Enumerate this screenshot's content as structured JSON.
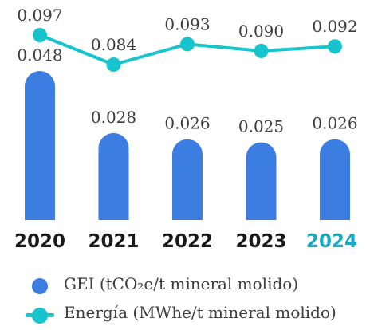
{
  "chart_data": {
    "type": "bar+line",
    "categories": [
      "2020",
      "2021",
      "2022",
      "2023",
      "2024"
    ],
    "highlight_category": "2024",
    "series": [
      {
        "name": "GEI (tCO₂e/t mineral molido)",
        "type": "bar",
        "values": [
          0.048,
          0.028,
          0.026,
          0.025,
          0.026
        ],
        "labels": [
          "0.048",
          "0.028",
          "0.026",
          "0.025",
          "0.026"
        ],
        "color": "#3b7de0"
      },
      {
        "name": "Energía (MWhe/t mineral molido)",
        "type": "line",
        "values": [
          0.097,
          0.084,
          0.093,
          0.09,
          0.092
        ],
        "labels": [
          "0.097",
          "0.084",
          "0.093",
          "0.090",
          "0.092"
        ],
        "color": "#17c3cc"
      }
    ],
    "legend_position": "bottom",
    "grid": false
  },
  "legend": {
    "gei_label": "GEI (tCO₂e/t mineral molido)",
    "energia_label": "Energía (MWhe/t mineral molido)"
  },
  "colors": {
    "bar": "#3b7de0",
    "line": "#17c3cc",
    "label_text": "#3d3d3d",
    "category_text": "#1a1a1a",
    "highlight_text": "#17a9c3"
  }
}
